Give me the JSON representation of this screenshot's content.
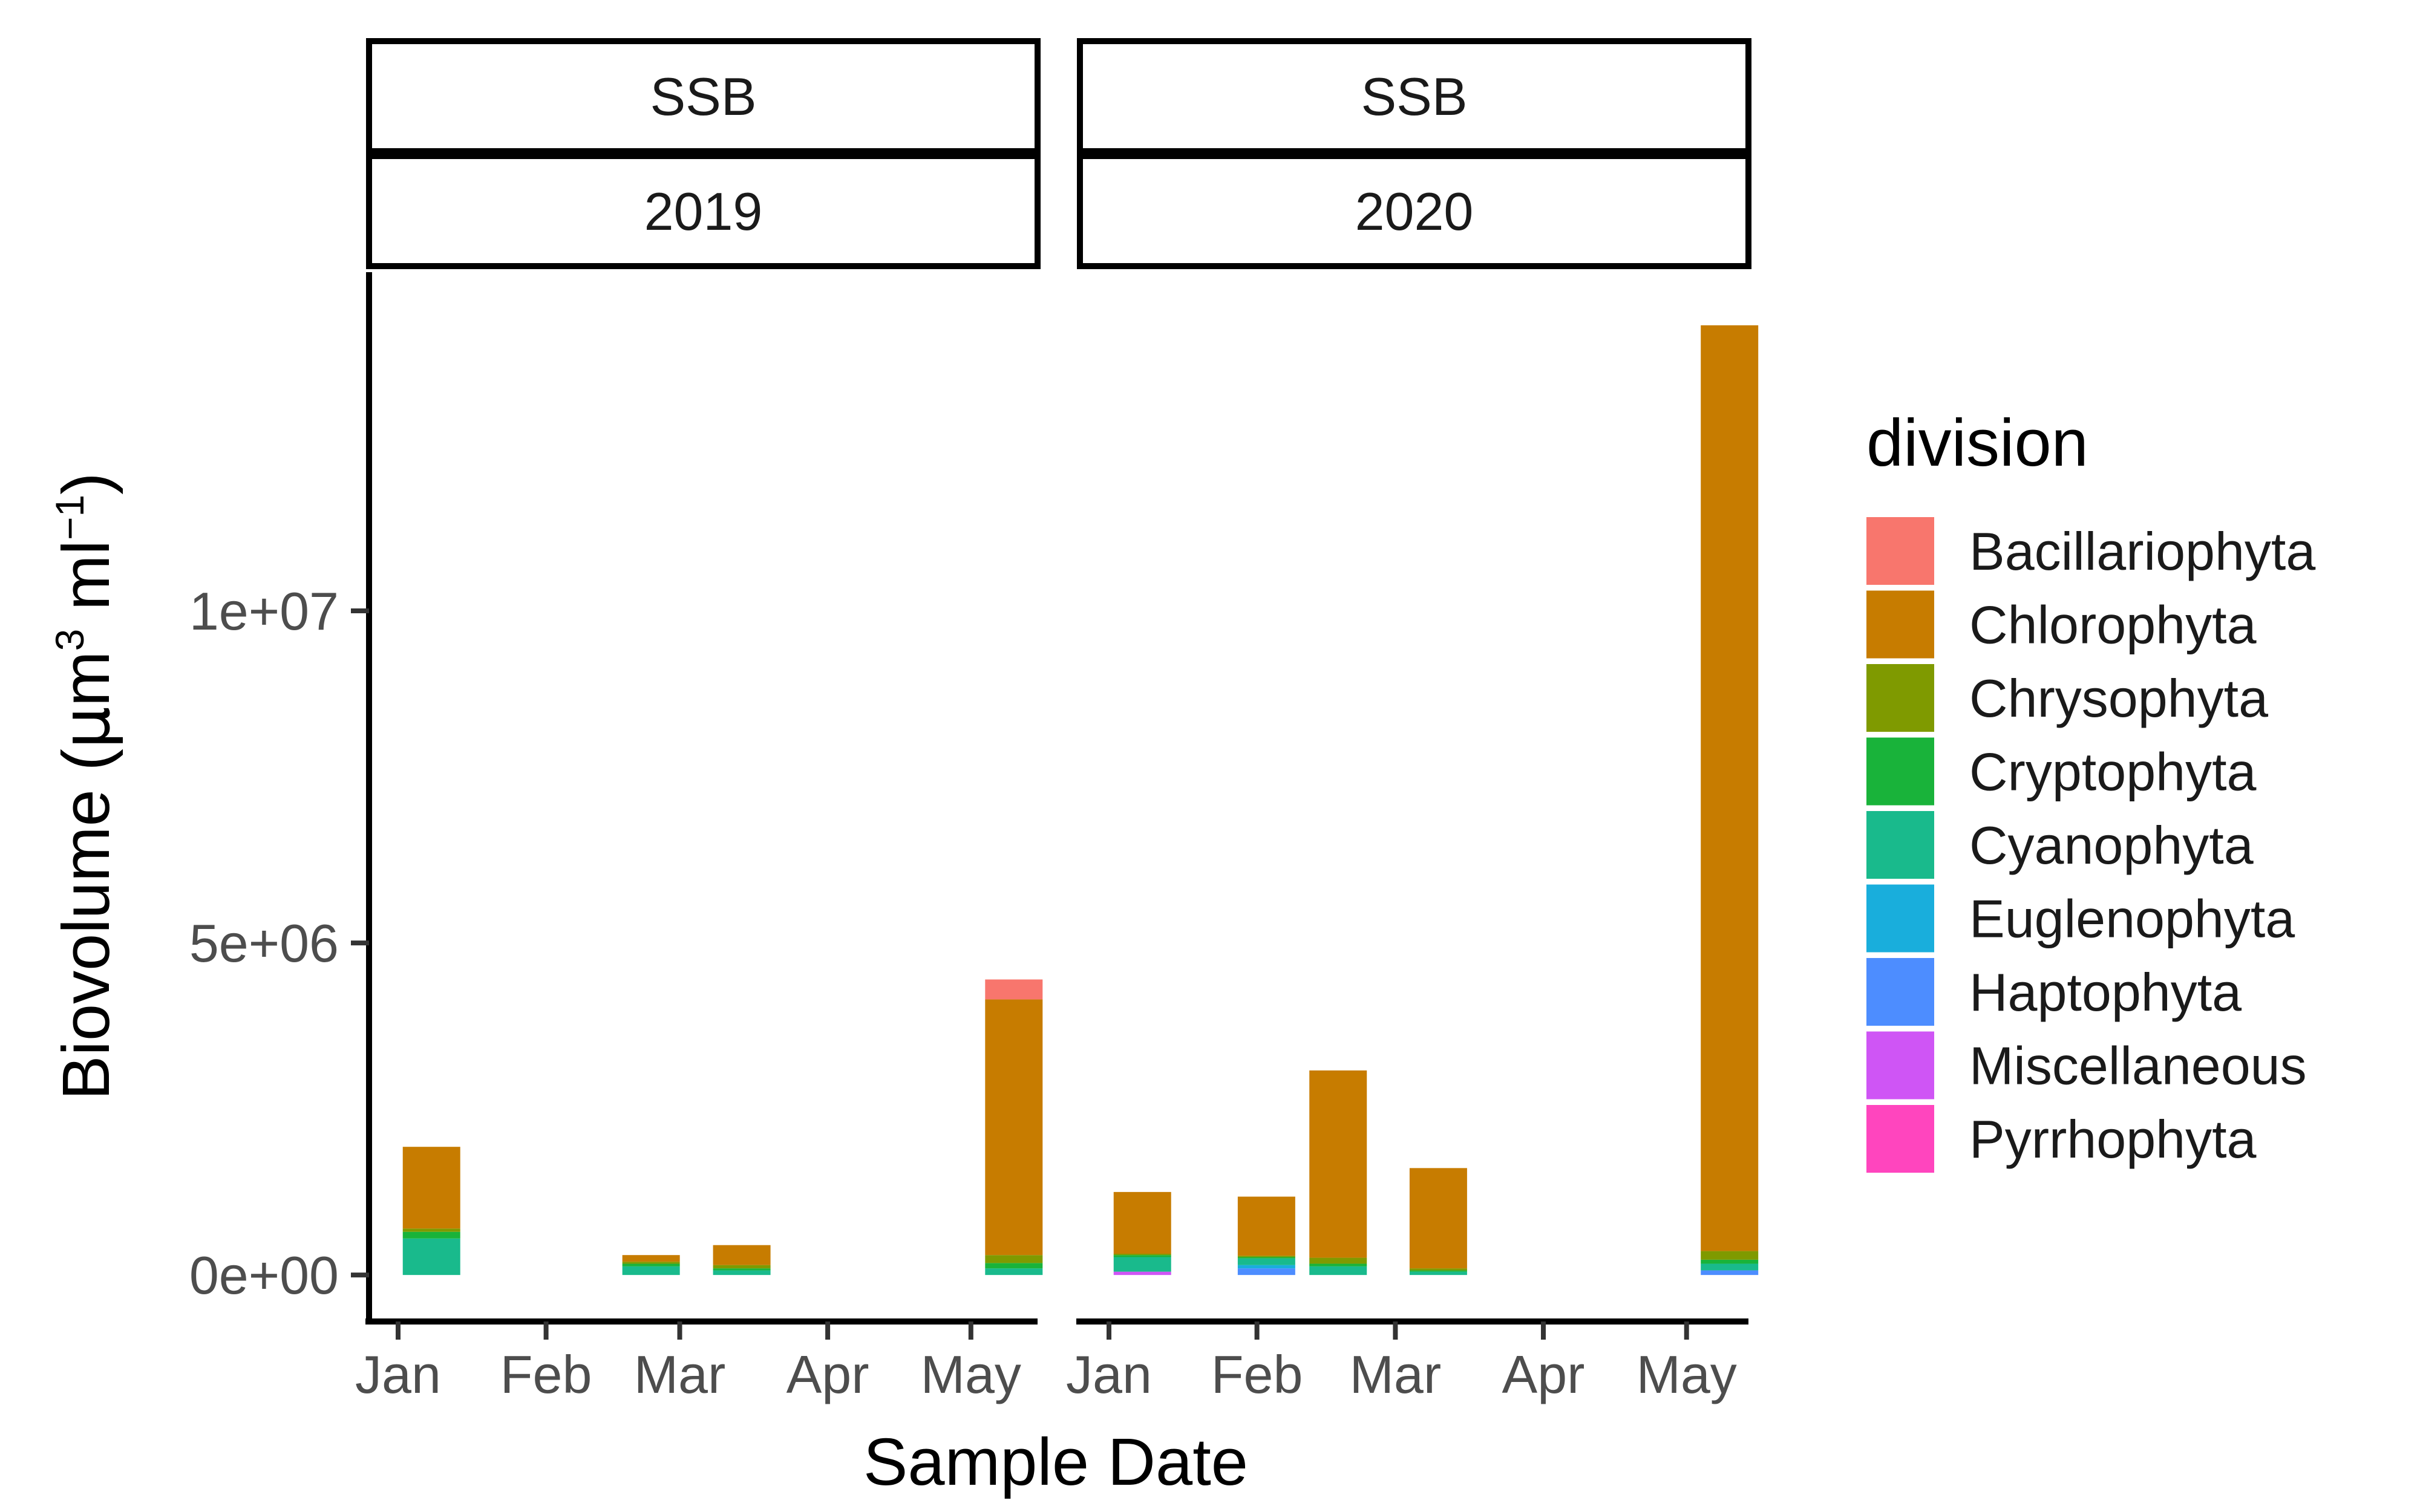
{
  "chart_data": {
    "type": "bar",
    "stacked": true,
    "xlabel": "Sample Date",
    "ylabel": {
      "prefix": "Biovolume (",
      "mu": "μ",
      "m": "m",
      "exp1": "3",
      "ml": " ml",
      "exp2": "−1",
      "suffix": ")"
    },
    "ylim": [
      -700000,
      15100000
    ],
    "y_ticks": [
      {
        "value": 0,
        "label": "0e+00"
      },
      {
        "value": 5000000,
        "label": "5e+06"
      },
      {
        "value": 10000000,
        "label": "1e+07"
      }
    ],
    "x_ticks": [
      {
        "label": "Jan",
        "date": "2019-01-01"
      },
      {
        "label": "Feb",
        "date": "2019-02-01"
      },
      {
        "label": "Mar",
        "date": "2019-03-01"
      },
      {
        "label": "Apr",
        "date": "2019-04-01"
      },
      {
        "label": "May",
        "date": "2019-05-01"
      }
    ],
    "x_tick_labels_2020": [
      "Jan",
      "Feb",
      "Mar",
      "Apr",
      "May"
    ],
    "legend": {
      "title": "division",
      "position": "right",
      "entries": [
        {
          "name": "Bacillariophyta",
          "color": "#F8766D"
        },
        {
          "name": "Chlorophyta",
          "color": "#C77C00"
        },
        {
          "name": "Chrysophyta",
          "color": "#7F9A00"
        },
        {
          "name": "Cryptophyta",
          "color": "#19B33A"
        },
        {
          "name": "Cyanophyta",
          "color": "#19BA8C"
        },
        {
          "name": "Euglenophyta",
          "color": "#19AEDC"
        },
        {
          "name": "Haptophyta",
          "color": "#4D8DFF"
        },
        {
          "name": "Miscellaneous",
          "color": "#CF55F5"
        },
        {
          "name": "Pyrrhophyta",
          "color": "#FF45BE"
        }
      ]
    },
    "grid": false,
    "facets": [
      {
        "strip": [
          "SSB",
          "2019"
        ],
        "bars": [
          {
            "date": "2019-01-08",
            "segments": [
              {
                "division": "Cyanophyta",
                "value": 550000
              },
              {
                "division": "Cryptophyta",
                "value": 100000
              },
              {
                "division": "Chrysophyta",
                "value": 50000
              },
              {
                "division": "Chlorophyta",
                "value": 1230000
              }
            ]
          },
          {
            "date": "2019-02-23",
            "segments": [
              {
                "division": "Cyanophyta",
                "value": 130000
              },
              {
                "division": "Cryptophyta",
                "value": 40000
              },
              {
                "division": "Chrysophyta",
                "value": 30000
              },
              {
                "division": "Chlorophyta",
                "value": 100000
              }
            ]
          },
          {
            "date": "2019-03-14",
            "segments": [
              {
                "division": "Cyanophyta",
                "value": 70000
              },
              {
                "division": "Cryptophyta",
                "value": 30000
              },
              {
                "division": "Chrysophyta",
                "value": 50000
              },
              {
                "division": "Chlorophyta",
                "value": 300000
              }
            ]
          },
          {
            "date": "2019-05-10",
            "segments": [
              {
                "division": "Cyanophyta",
                "value": 100000
              },
              {
                "division": "Cryptophyta",
                "value": 80000
              },
              {
                "division": "Chrysophyta",
                "value": 120000
              },
              {
                "division": "Chlorophyta",
                "value": 3850000
              },
              {
                "division": "Bacillariophyta",
                "value": 300000
              }
            ]
          }
        ]
      },
      {
        "strip": [
          "SSB",
          "2020"
        ],
        "bars": [
          {
            "date": "2020-01-08",
            "segments": [
              {
                "division": "Miscellaneous",
                "value": 50000
              },
              {
                "division": "Cyanophyta",
                "value": 220000
              },
              {
                "division": "Cryptophyta",
                "value": 30000
              },
              {
                "division": "Chrysophyta",
                "value": 20000
              },
              {
                "division": "Chlorophyta",
                "value": 930000
              }
            ]
          },
          {
            "date": "2020-02-03",
            "segments": [
              {
                "division": "Haptophyta",
                "value": 100000
              },
              {
                "division": "Euglenophyta",
                "value": 50000
              },
              {
                "division": "Cyanophyta",
                "value": 100000
              },
              {
                "division": "Cryptophyta",
                "value": 20000
              },
              {
                "division": "Chrysophyta",
                "value": 20000
              },
              {
                "division": "Chlorophyta",
                "value": 890000
              }
            ]
          },
          {
            "date": "2020-02-18",
            "segments": [
              {
                "division": "Cyanophyta",
                "value": 130000
              },
              {
                "division": "Cryptophyta",
                "value": 40000
              },
              {
                "division": "Chrysophyta",
                "value": 90000
              },
              {
                "division": "Chlorophyta",
                "value": 2820000
              }
            ]
          },
          {
            "date": "2020-03-10",
            "segments": [
              {
                "division": "Cyanophyta",
                "value": 50000
              },
              {
                "division": "Cryptophyta",
                "value": 20000
              },
              {
                "division": "Chrysophyta",
                "value": 30000
              },
              {
                "division": "Chlorophyta",
                "value": 1510000
              }
            ]
          },
          {
            "date": "2020-05-10",
            "segments": [
              {
                "division": "Haptophyta",
                "value": 70000
              },
              {
                "division": "Cyanophyta",
                "value": 100000
              },
              {
                "division": "Cryptophyta",
                "value": 60000
              },
              {
                "division": "Chrysophyta",
                "value": 130000
              },
              {
                "division": "Chlorophyta",
                "value": 13940000
              }
            ]
          }
        ]
      }
    ]
  }
}
